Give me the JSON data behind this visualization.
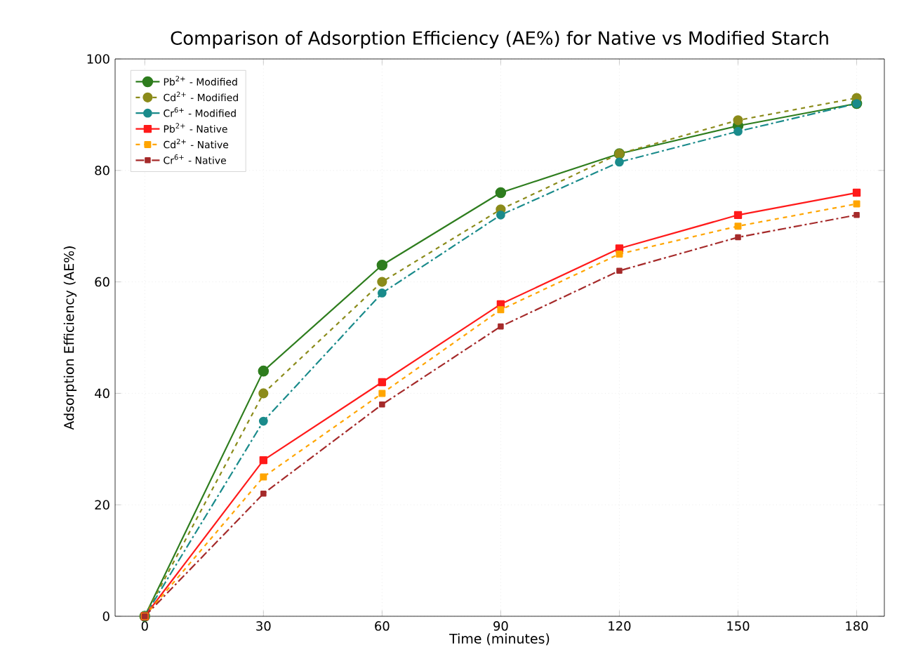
{
  "chart_data": {
    "type": "line",
    "title": "Comparison of Adsorption Efficiency (AE%) for Native vs Modified Starch",
    "xlabel": "Time (minutes)",
    "ylabel": "Adsorption Efficiency (AE%)",
    "x": [
      0,
      30,
      60,
      90,
      120,
      150,
      180
    ],
    "series": [
      {
        "name": "Pb$^{2+}$ - Modified",
        "color": "#2e7d1e",
        "marker": "circle",
        "line_style": "solid",
        "values": [
          0,
          44,
          63,
          76,
          83,
          88,
          92
        ]
      },
      {
        "name": "Cd$^{2+}$ - Modified",
        "color": "#8b8b1a",
        "marker": "circle",
        "line_style": "dashed",
        "values": [
          0,
          40,
          60,
          73,
          83,
          89,
          93
        ]
      },
      {
        "name": "Cr$^{6+}$ - Modified",
        "color": "#1a8b8b",
        "marker": "circle",
        "line_style": "dashdot",
        "values": [
          0,
          35,
          58,
          72,
          81.5,
          87,
          92
        ]
      },
      {
        "name": "Pb$^{2+}$ - Native",
        "color": "#ff1a1a",
        "marker": "square",
        "line_style": "solid",
        "values": [
          0,
          28,
          42,
          56,
          66,
          72,
          76
        ]
      },
      {
        "name": "Cd$^{2+}$ - Native",
        "color": "#ffa500",
        "marker": "square",
        "line_style": "dashed",
        "values": [
          0,
          25,
          40,
          55,
          65,
          70,
          74
        ]
      },
      {
        "name": "Cr$^{6+}$ - Native",
        "color": "#a52a2a",
        "marker": "square",
        "line_style": "dashdot",
        "values": [
          0,
          22,
          38,
          52,
          62,
          68,
          72
        ]
      }
    ],
    "xlim": [
      -7.5,
      187
    ],
    "ylim": [
      0,
      100
    ],
    "xticks": [
      0,
      30,
      60,
      90,
      120,
      150,
      180
    ],
    "yticks": [
      0,
      20,
      40,
      60,
      80,
      100
    ],
    "grid": true,
    "legend": "top left"
  }
}
